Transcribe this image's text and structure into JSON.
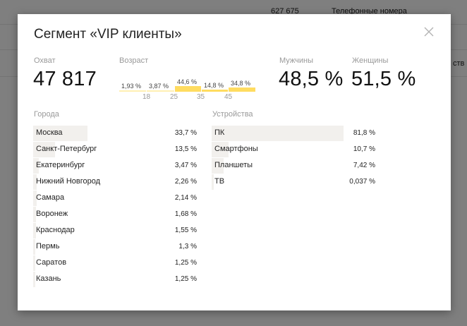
{
  "background": {
    "top_number": "627 675",
    "top_label": "Телефонные номера",
    "right_label": "ств"
  },
  "modal": {
    "title": "Сегмент «VIP клиенты»",
    "close_icon": "close-icon"
  },
  "reach": {
    "label": "Охват",
    "value": "47 817"
  },
  "age": {
    "label": "Возраст",
    "bins": [
      {
        "pct_label": "1,93 %",
        "value": 1.93
      },
      {
        "pct_label": "3,87 %",
        "value": 3.87
      },
      {
        "pct_label": "44,6 %",
        "value": 44.6
      },
      {
        "pct_label": "14,8 %",
        "value": 14.8
      },
      {
        "pct_label": "34,8 %",
        "value": 34.8
      }
    ],
    "ticks": [
      "18",
      "25",
      "35",
      "45"
    ]
  },
  "men": {
    "label": "Мужчины",
    "value": "48,5 %"
  },
  "women": {
    "label": "Женщины",
    "value": "51,5 %"
  },
  "cities": {
    "label": "Города",
    "items": [
      {
        "name": "Москва",
        "value": "33,7 %",
        "fraction": 0.337
      },
      {
        "name": "Санкт-Петербург",
        "value": "13,5 %",
        "fraction": 0.135
      },
      {
        "name": "Екатеринбург",
        "value": "3,47 %",
        "fraction": 0.0347
      },
      {
        "name": "Нижний Новгород",
        "value": "2,26 %",
        "fraction": 0.0226
      },
      {
        "name": "Самара",
        "value": "2,14 %",
        "fraction": 0.0214
      },
      {
        "name": "Воронеж",
        "value": "1,68 %",
        "fraction": 0.0168
      },
      {
        "name": "Краснодар",
        "value": "1,55 %",
        "fraction": 0.0155
      },
      {
        "name": "Пермь",
        "value": "1,3 %",
        "fraction": 0.013
      },
      {
        "name": "Саратов",
        "value": "1,25 %",
        "fraction": 0.0125
      },
      {
        "name": "Казань",
        "value": "1,25 %",
        "fraction": 0.0125
      }
    ]
  },
  "devices": {
    "label": "Устройства",
    "items": [
      {
        "name": "ПК",
        "value": "81,8 %",
        "fraction": 0.818
      },
      {
        "name": "Смартфоны",
        "value": "10,7 %",
        "fraction": 0.107
      },
      {
        "name": "Планшеты",
        "value": "7,42 %",
        "fraction": 0.0742
      },
      {
        "name": "ТВ",
        "value": "0,037 %",
        "fraction": 0.00037
      }
    ]
  }
}
